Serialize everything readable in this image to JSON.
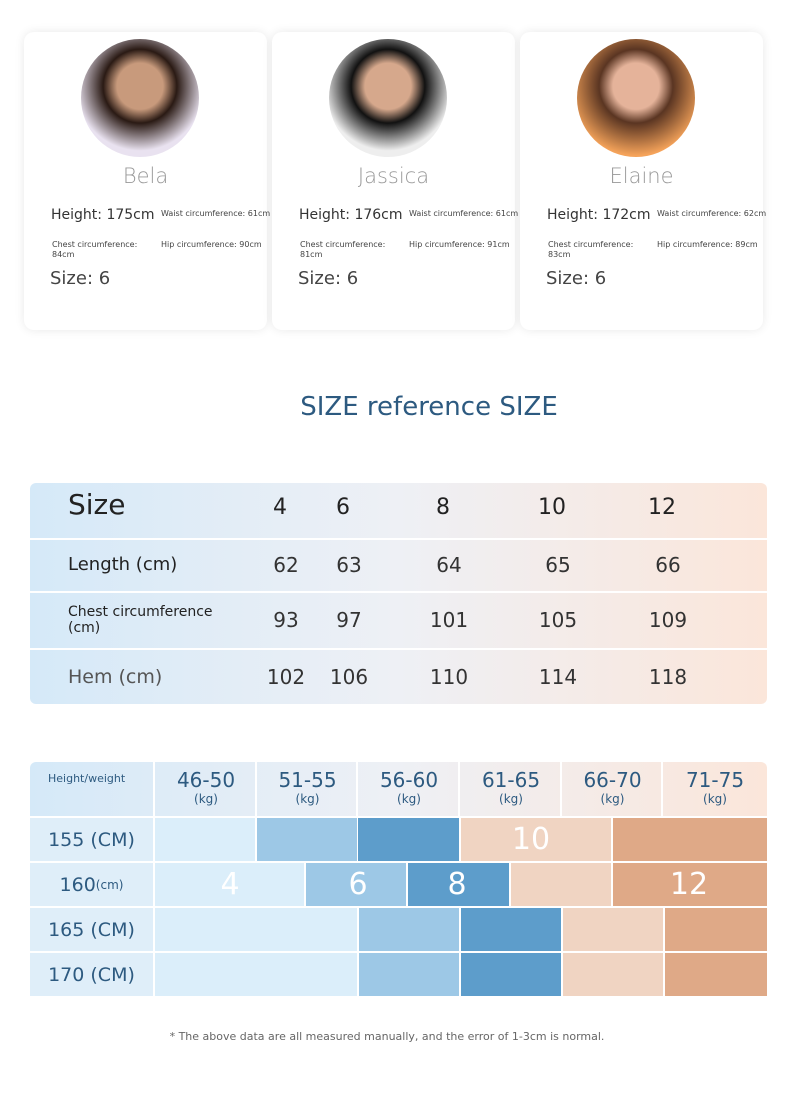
{
  "models": [
    {
      "name": "Bela",
      "height": "Height: 175cm",
      "waist": "Waist circumference: 61cm",
      "chest": "Chest circumference: 84cm",
      "hip": "Hip circumference: 90cm",
      "size": "Size: 6"
    },
    {
      "name": "Jassica",
      "height": "Height: 176cm",
      "waist": "Waist circumference: 61cm",
      "chest": "Chest circumference: 81cm",
      "hip": "Hip circumference: 91cm",
      "size": "Size: 6"
    },
    {
      "name": "Elaine",
      "height": "Height: 172cm",
      "waist": "Waist circumference: 62cm",
      "chest": "Chest circumference: 83cm",
      "hip": "Hip circumference: 89cm",
      "size": "Size: 6"
    }
  ],
  "title": "SIZE reference SIZE",
  "size_table": {
    "header": [
      "Size",
      "4",
      "6",
      "8",
      "10",
      "12"
    ],
    "rows": [
      [
        "Length (cm)",
        "62",
        "63",
        "64",
        "65",
        "66"
      ],
      [
        "Chest circumference (cm)",
        "93",
        "97",
        "101",
        "105",
        "109"
      ],
      [
        "Hem (cm)",
        "102",
        "106",
        "110",
        "114",
        "118"
      ]
    ]
  },
  "fit_chart": {
    "corner": "Height/weight",
    "columns": [
      {
        "range": "46-50",
        "unit": "(kg)"
      },
      {
        "range": "51-55",
        "unit": "(kg)"
      },
      {
        "range": "56-60",
        "unit": "(kg)"
      },
      {
        "range": "61-65",
        "unit": "(kg)"
      },
      {
        "range": "66-70",
        "unit": "(kg)"
      },
      {
        "range": "71-75",
        "unit": "(kg)"
      }
    ],
    "rows": [
      {
        "label": "155 (CM)"
      },
      {
        "label": "160",
        "unit": "(cm)"
      },
      {
        "label": "165 (CM)"
      },
      {
        "label": "170 (CM)"
      }
    ],
    "sizes": [
      "4",
      "6",
      "8",
      "10",
      "12"
    ]
  },
  "footnote": "* The above data are all measured manually, and the error of 1-3cm is normal."
}
